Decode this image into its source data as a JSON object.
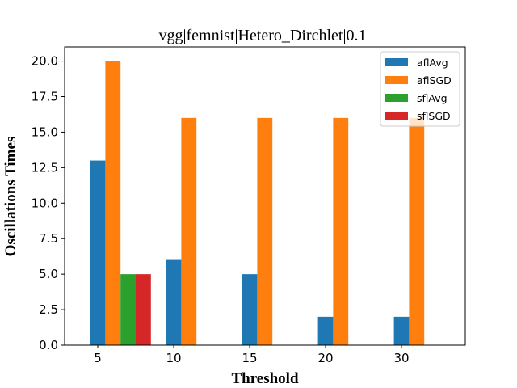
{
  "chart_data": {
    "type": "bar",
    "title": "vgg|femnist|Hetero_Dirchlet|0.1",
    "xlabel": "Threshold",
    "ylabel": "Oscillations Times",
    "categories": [
      "5",
      "10",
      "15",
      "20",
      "30"
    ],
    "ylim": [
      0,
      21
    ],
    "yticks": [
      "0.0",
      "2.5",
      "5.0",
      "7.5",
      "10.0",
      "12.5",
      "15.0",
      "17.5",
      "20.0"
    ],
    "grid": false,
    "legend_position": "top-right",
    "series": [
      {
        "name": "aflAvg",
        "color": "#1f77b4",
        "values": [
          13,
          6,
          5,
          2,
          2
        ]
      },
      {
        "name": "aflSGD",
        "color": "#ff7f0e",
        "values": [
          20,
          16,
          16,
          16,
          16
        ]
      },
      {
        "name": "sflAvg",
        "color": "#2ca02c",
        "values": [
          5,
          null,
          null,
          null,
          null
        ]
      },
      {
        "name": "sflSGD",
        "color": "#d62728",
        "values": [
          5,
          null,
          null,
          null,
          null
        ]
      }
    ]
  }
}
